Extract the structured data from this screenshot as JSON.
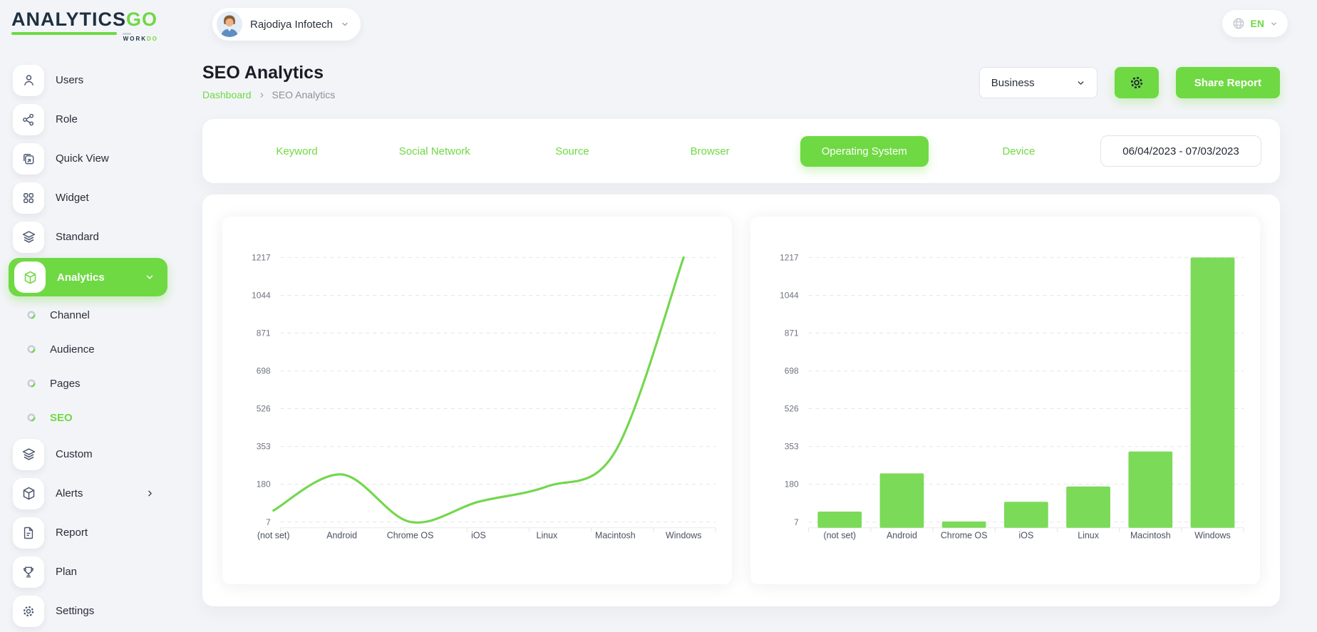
{
  "brand": {
    "logo_text": "ANALYTICS",
    "logo_accent": "GO",
    "logo_sub": "WORK",
    "logo_sub_accent": "DO"
  },
  "topbar": {
    "user_name": "Rajodiya Infotech",
    "language": "EN"
  },
  "sidebar": {
    "items_top": [
      {
        "label": "Users",
        "icon": "user-icon"
      },
      {
        "label": "Role",
        "icon": "share-icon"
      },
      {
        "label": "Quick View",
        "icon": "quick-view-icon"
      },
      {
        "label": "Widget",
        "icon": "widget-icon"
      },
      {
        "label": "Standard",
        "icon": "layers-icon"
      }
    ],
    "analytics": {
      "label": "Analytics",
      "icon": "cube-icon",
      "active": true,
      "children": [
        {
          "label": "Channel",
          "active": false
        },
        {
          "label": "Audience",
          "active": false
        },
        {
          "label": "Pages",
          "active": false
        },
        {
          "label": "SEO",
          "active": true
        }
      ]
    },
    "items_bottom": [
      {
        "label": "Custom",
        "icon": "layers-icon"
      },
      {
        "label": "Alerts",
        "icon": "box-icon",
        "has_submenu": true
      },
      {
        "label": "Report",
        "icon": "file-icon"
      },
      {
        "label": "Plan",
        "icon": "trophy-icon"
      },
      {
        "label": "Settings",
        "icon": "gear-icon"
      }
    ]
  },
  "page_header": {
    "title": "SEO Analytics",
    "breadcrumb": [
      "Dashboard",
      "SEO Analytics"
    ],
    "filter_label": "Business",
    "share_button_label": "Share Report"
  },
  "tabs": {
    "items": [
      "Keyword",
      "Social Network",
      "Source",
      "Browser",
      "Operating System",
      "Device"
    ],
    "active": "Operating System",
    "date_range": "06/04/2023 - 07/03/2023"
  },
  "colors": {
    "accent": "#6fd943",
    "line": "#74d74e",
    "bar": "#7cda59",
    "ink": "#1d3040"
  },
  "chart_data": [
    {
      "type": "line",
      "title": "",
      "categories": [
        "(not set)",
        "Android",
        "Chrome OS",
        "iOS",
        "Linux",
        "Macintosh",
        "Windows"
      ],
      "values": [
        60,
        225,
        8,
        100,
        170,
        330,
        1217
      ],
      "yticks": [
        7,
        180,
        353,
        526,
        698,
        871,
        1044,
        1217
      ],
      "ylim": [
        7,
        1217
      ],
      "xlabel": "",
      "ylabel": "",
      "grid": "dashed-horizontal",
      "legend": "none",
      "color": "#74d74e"
    },
    {
      "type": "bar",
      "title": "",
      "categories": [
        "(not set)",
        "Android",
        "Chrome OS",
        "iOS",
        "Linux",
        "Macintosh",
        "Windows"
      ],
      "values": [
        55,
        230,
        10,
        100,
        170,
        330,
        1217
      ],
      "yticks": [
        7,
        180,
        353,
        526,
        698,
        871,
        1044,
        1217
      ],
      "ylim": [
        7,
        1217
      ],
      "xlabel": "",
      "ylabel": "",
      "grid": "dashed-horizontal",
      "legend": "none",
      "color": "#7cda59"
    }
  ]
}
